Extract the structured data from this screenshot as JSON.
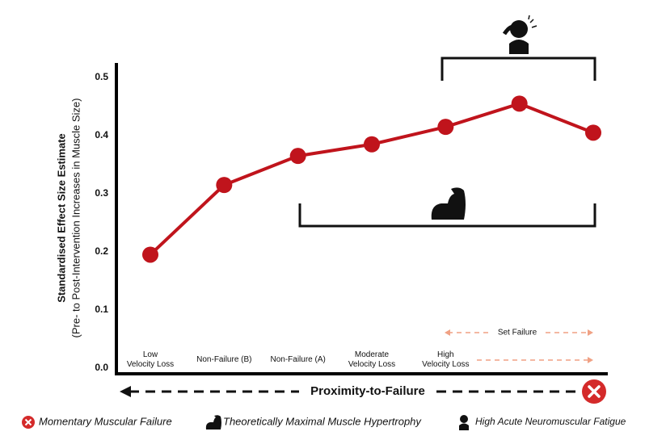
{
  "chart_data": {
    "type": "line",
    "y_label": "Standardised Effect Size Estimate",
    "y_label_sub": "(Pre- to Post-Intervention Increases in Muscle Size)",
    "x_label": "Proximity-to-Failure",
    "categories": [
      "Low\nVelocity Loss",
      "Non-Failure (B)",
      "Non-Failure (A)",
      "Moderate\nVelocity Loss",
      "High\nVelocity Loss",
      null,
      null
    ],
    "series": [
      {
        "name": "Effect size",
        "color": "#c0141c",
        "values": [
          0.195,
          0.315,
          0.365,
          0.385,
          0.415,
          0.455,
          0.405
        ]
      }
    ],
    "ylim": [
      -0.01,
      0.525
    ],
    "yticks": [
      {
        "value": 0,
        "label": "0.0"
      },
      0.1,
      0.2,
      0.3,
      0.4,
      0.5
    ],
    "annotations": {
      "set_failure": "Set Failure"
    },
    "legend": [
      "Momentary Muscular Failure",
      "Theoretically Maximal Muscle Hypertrophy",
      "High Acute Neuromuscular Fatigue"
    ]
  }
}
